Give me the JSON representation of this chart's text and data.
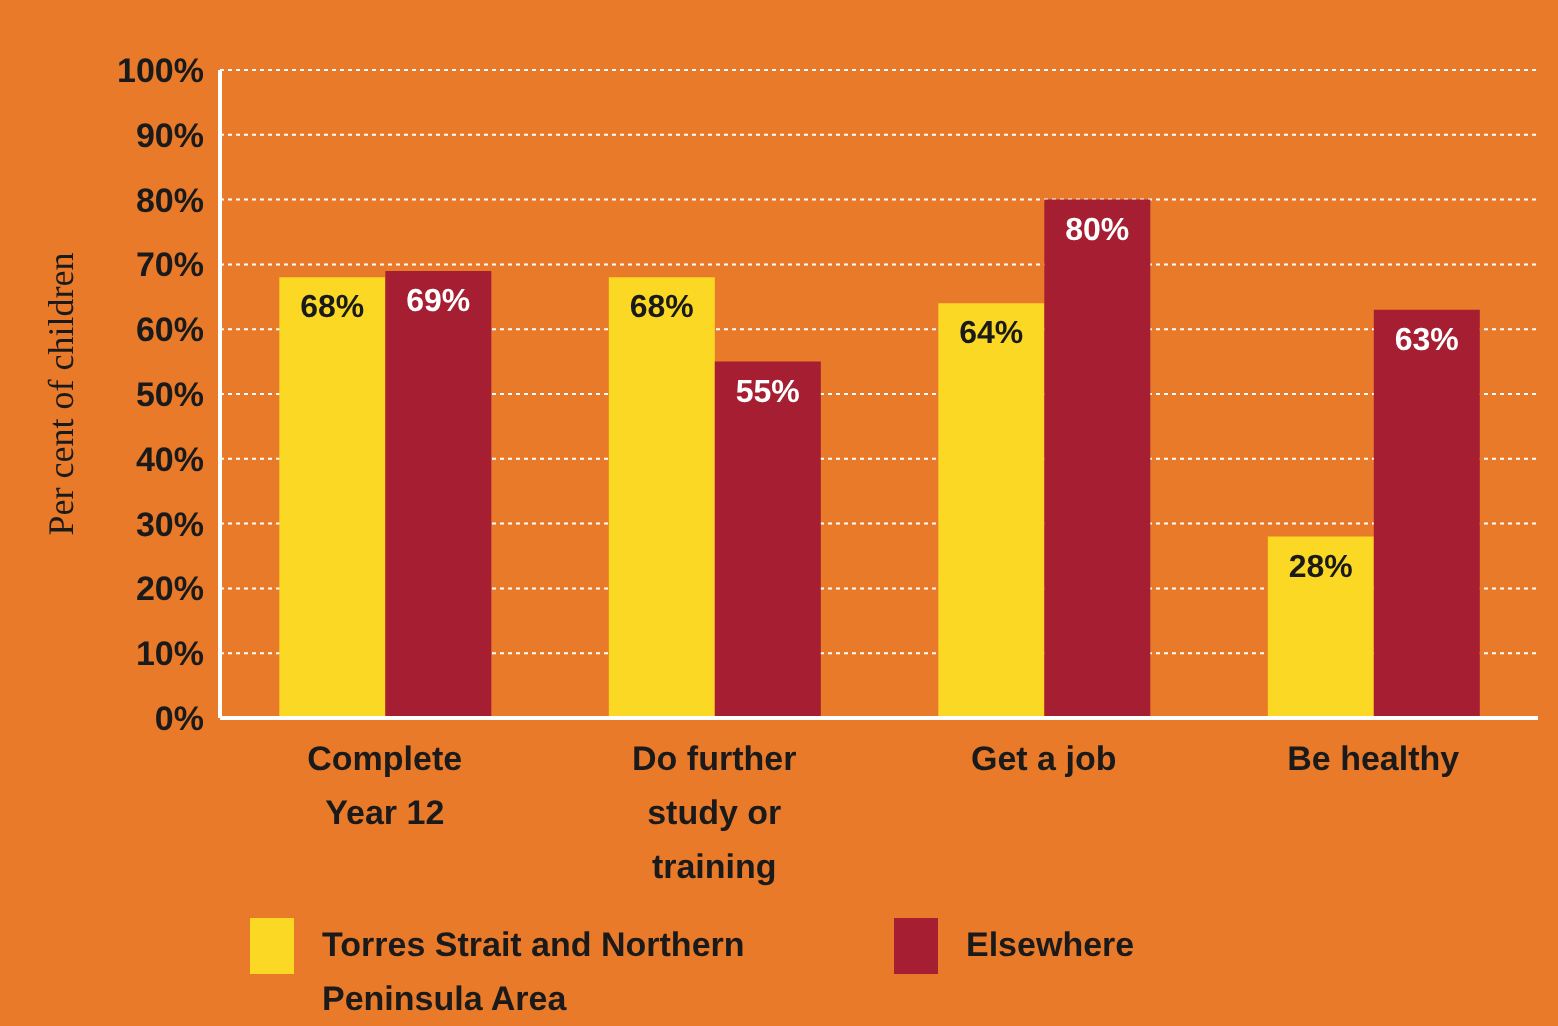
{
  "chart_data": {
    "type": "bar",
    "ylabel": "Per cent of children",
    "categories": [
      "Complete Year 12",
      "Do further study or training",
      "Get a job",
      "Be healthy"
    ],
    "series": [
      {
        "name": "Torres Strait and Northern Peninsula Area",
        "color": "#fbd823",
        "values": [
          68,
          68,
          64,
          28
        ],
        "value_labels": [
          "68%",
          "68%",
          "64%",
          "28%"
        ]
      },
      {
        "name": "Elsewhere",
        "color": "#a51e32",
        "values": [
          69,
          55,
          80,
          63
        ],
        "value_labels": [
          "69%",
          "55%",
          "80%",
          "63%"
        ]
      }
    ],
    "ylim": [
      0,
      100
    ],
    "yticks": [
      {
        "value": 0,
        "label": "0%"
      },
      {
        "value": 10,
        "label": "10%"
      },
      {
        "value": 20,
        "label": "20%"
      },
      {
        "value": 30,
        "label": "30%"
      },
      {
        "value": 40,
        "label": "40%"
      },
      {
        "value": 50,
        "label": "50%"
      },
      {
        "value": 60,
        "label": "60%"
      },
      {
        "value": 70,
        "label": "70%"
      },
      {
        "value": 80,
        "label": "80%"
      },
      {
        "value": 90,
        "label": "90%"
      },
      {
        "value": 100,
        "label": "100%"
      }
    ],
    "grid": "y",
    "legend": "bottom"
  }
}
